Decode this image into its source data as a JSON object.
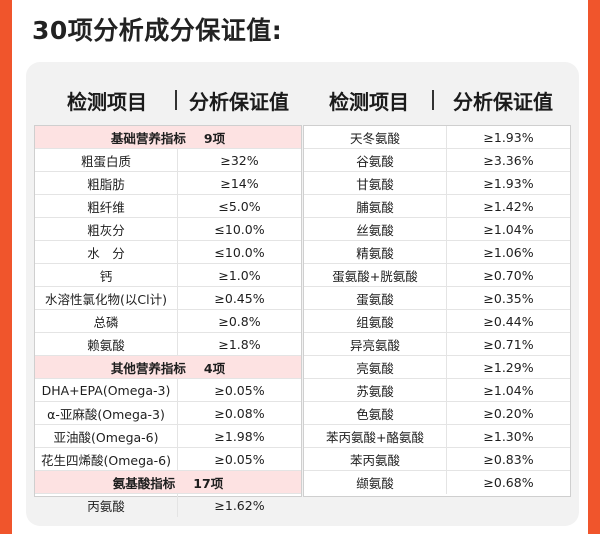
{
  "title": "30项分析成分保证值:",
  "headers": {
    "left_item": "检测项目",
    "left_value": "分析保证值",
    "right_item": "检测项目",
    "right_value": "分析保证值"
  },
  "left_rows": [
    {
      "type": "section",
      "label": "基础营养指标",
      "count": "9项"
    },
    {
      "type": "item",
      "name": "粗蛋白质",
      "value": "≥32%"
    },
    {
      "type": "item",
      "name": "粗脂肪",
      "value": "≥14%"
    },
    {
      "type": "item",
      "name": "粗纤维",
      "value": "≤5.0%"
    },
    {
      "type": "item",
      "name": "粗灰分",
      "value": "≤10.0%"
    },
    {
      "type": "item",
      "name": "水　分",
      "value": "≤10.0%"
    },
    {
      "type": "item",
      "name": "钙",
      "value": "≥1.0%"
    },
    {
      "type": "item",
      "name": "水溶性氯化物(以Cl计)",
      "value": "≥0.45%"
    },
    {
      "type": "item",
      "name": "总磷",
      "value": "≥0.8%"
    },
    {
      "type": "item",
      "name": "赖氨酸",
      "value": "≥1.8%"
    },
    {
      "type": "section",
      "label": "其他营养指标",
      "count": "4项"
    },
    {
      "type": "item",
      "name": "DHA+EPA(Omega-3)",
      "value": "≥0.05%"
    },
    {
      "type": "item",
      "name": "α-亚麻酸(Omega-3)",
      "value": "≥0.08%"
    },
    {
      "type": "item",
      "name": "亚油酸(Omega-6)",
      "value": "≥1.98%"
    },
    {
      "type": "item",
      "name": "花生四烯酸(Omega-6)",
      "value": "≥0.05%"
    },
    {
      "type": "section",
      "label": "氨基酸指标",
      "count": "17项"
    },
    {
      "type": "item",
      "name": "丙氨酸",
      "value": "≥1.62%"
    }
  ],
  "right_rows": [
    {
      "type": "item",
      "name": "天冬氨酸",
      "value": "≥1.93%"
    },
    {
      "type": "item",
      "name": "谷氨酸",
      "value": "≥3.36%"
    },
    {
      "type": "item",
      "name": "甘氨酸",
      "value": "≥1.93%"
    },
    {
      "type": "item",
      "name": "脯氨酸",
      "value": "≥1.42%"
    },
    {
      "type": "item",
      "name": "丝氨酸",
      "value": "≥1.04%"
    },
    {
      "type": "item",
      "name": "精氨酸",
      "value": "≥1.06%"
    },
    {
      "type": "item",
      "name": "蛋氨酸+胱氨酸",
      "value": "≥0.70%"
    },
    {
      "type": "item",
      "name": "蛋氨酸",
      "value": "≥0.35%"
    },
    {
      "type": "item",
      "name": "组氨酸",
      "value": "≥0.44%"
    },
    {
      "type": "item",
      "name": "异亮氨酸",
      "value": "≥0.71%"
    },
    {
      "type": "item",
      "name": "亮氨酸",
      "value": "≥1.29%"
    },
    {
      "type": "item",
      "name": "苏氨酸",
      "value": "≥1.04%"
    },
    {
      "type": "item",
      "name": "色氨酸",
      "value": "≥0.20%"
    },
    {
      "type": "item",
      "name": "苯丙氨酸+酪氨酸",
      "value": "≥1.30%"
    },
    {
      "type": "item",
      "name": "苯丙氨酸",
      "value": "≥0.83%"
    },
    {
      "type": "item",
      "name": "缬氨酸",
      "value": "≥0.68%"
    }
  ]
}
